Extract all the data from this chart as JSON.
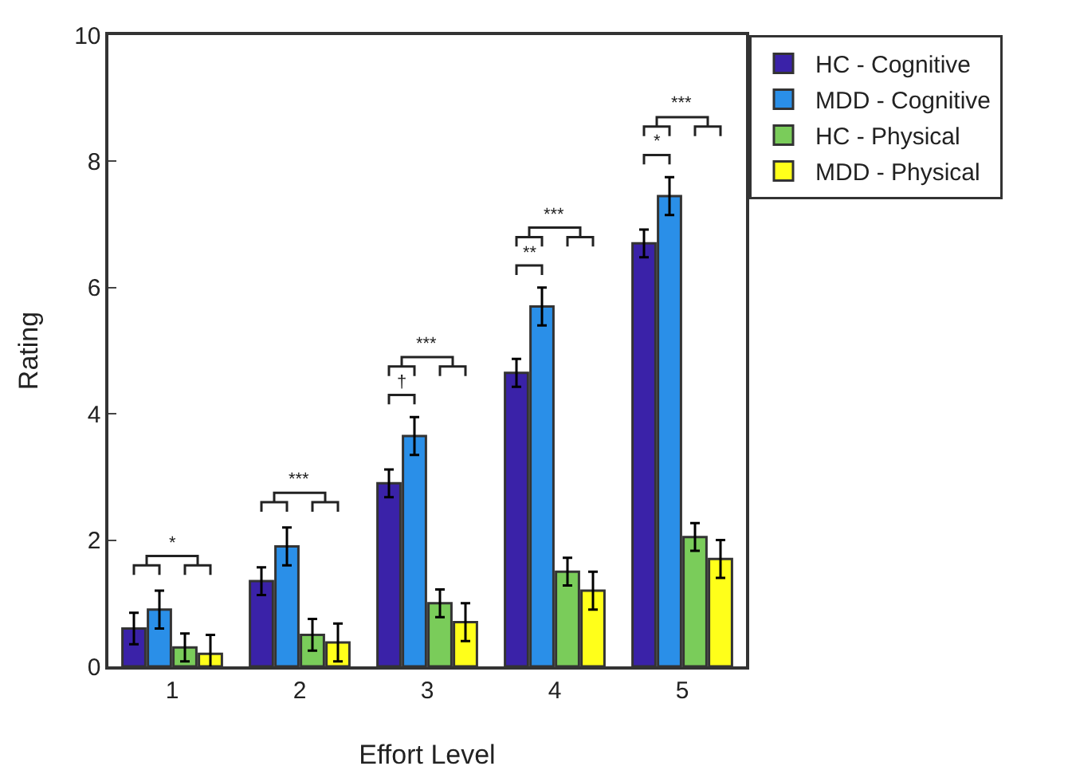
{
  "chart_data": {
    "type": "bar",
    "xlabel": "Effort Level",
    "ylabel": "Rating",
    "categories": [
      "1",
      "2",
      "3",
      "4",
      "5"
    ],
    "series": [
      {
        "name": "HC - Cognitive",
        "color": "#3a22a8",
        "values": [
          0.6,
          1.35,
          2.9,
          4.65,
          6.7
        ],
        "errors": [
          0.25,
          0.22,
          0.22,
          0.22,
          0.22
        ]
      },
      {
        "name": "MDD - Cognitive",
        "color": "#2a8fe8",
        "values": [
          0.9,
          1.9,
          3.65,
          5.7,
          7.45
        ],
        "errors": [
          0.3,
          0.3,
          0.3,
          0.3,
          0.3
        ]
      },
      {
        "name": "HC - Physical",
        "color": "#7acc5a",
        "values": [
          0.3,
          0.5,
          1.0,
          1.5,
          2.05
        ],
        "errors": [
          0.22,
          0.25,
          0.22,
          0.22,
          0.22
        ]
      },
      {
        "name": "MDD - Physical",
        "color": "#ffff1a",
        "values": [
          0.2,
          0.38,
          0.7,
          1.2,
          1.7
        ],
        "errors": [
          0.3,
          0.3,
          0.3,
          0.3,
          0.3
        ]
      }
    ],
    "annotations": [
      "*",
      "***",
      "†",
      "***",
      "**",
      "***",
      "*",
      "***"
    ],
    "ylim": [
      0,
      10
    ],
    "yticks": [
      0,
      2,
      4,
      6,
      8,
      10
    ],
    "grid": false,
    "legend": "top right"
  }
}
